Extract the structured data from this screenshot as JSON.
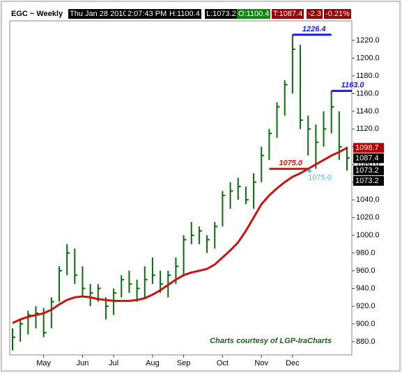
{
  "header": {
    "symbol": "EGC ~ Weekly",
    "date": "Thu Jan 28 2010",
    "time": "2:07:43 PM",
    "high": "H:1100.4",
    "low": "L:1073.2",
    "open": "O:1100.4",
    "last": "T:1087.4",
    "change": "-2.3",
    "change_pct": "-0.21%"
  },
  "chart_data": {
    "type": "ohlc",
    "categories": [
      null,
      null,
      null,
      null,
      "May",
      null,
      null,
      null,
      null,
      "Jun",
      null,
      null,
      null,
      "Jul",
      null,
      null,
      null,
      null,
      "Aug",
      null,
      null,
      null,
      "Sep",
      null,
      null,
      null,
      null,
      "Oct",
      null,
      null,
      null,
      null,
      "Nov",
      null,
      null,
      null,
      "Dec",
      null,
      null,
      null,
      null,
      null,
      null,
      null
    ],
    "high": [
      895,
      905,
      915,
      920,
      918,
      930,
      965,
      990,
      985,
      965,
      945,
      945,
      930,
      940,
      955,
      960,
      950,
      965,
      975,
      960,
      960,
      975,
      1000,
      1015,
      1010,
      1000,
      1015,
      1050,
      1060,
      1065,
      1055,
      1070,
      1100,
      1120,
      1150,
      1175,
      1226.4,
      1215,
      1135,
      1125,
      1140,
      1163,
      1140,
      1100
    ],
    "low": [
      870,
      880,
      888,
      895,
      885,
      895,
      925,
      955,
      945,
      930,
      920,
      925,
      905,
      910,
      930,
      935,
      925,
      930,
      945,
      935,
      930,
      945,
      955,
      990,
      990,
      980,
      985,
      1010,
      1030,
      1040,
      1035,
      1030,
      1060,
      1085,
      1110,
      1135,
      1160,
      1120,
      1090,
      1075,
      1100,
      1115,
      1085,
      1073.2
    ],
    "close": [
      885,
      900,
      910,
      912,
      890,
      925,
      960,
      980,
      955,
      940,
      935,
      940,
      920,
      935,
      950,
      945,
      940,
      950,
      955,
      945,
      955,
      965,
      995,
      1000,
      1005,
      995,
      1010,
      1045,
      1050,
      1055,
      1040,
      1060,
      1090,
      1115,
      1145,
      1170,
      1210,
      1130,
      1120,
      1105,
      1120,
      1145,
      1100,
      1087.4
    ],
    "ma": [
      901,
      905,
      908,
      910,
      912,
      916,
      922,
      927,
      930,
      931,
      930,
      928,
      927,
      926,
      926,
      926,
      927,
      929,
      933,
      938,
      944,
      950,
      955,
      958,
      960,
      962,
      967,
      975,
      983,
      992,
      1005,
      1020,
      1035,
      1045,
      1053,
      1060,
      1066,
      1070,
      1075,
      1080,
      1085,
      1090,
      1094,
      1098.7
    ],
    "color": "#0a6b0a",
    "ma_color": "#cc1111",
    "ylim": [
      865,
      1242
    ],
    "yticks": [
      {
        "value": 880,
        "label": "880.0"
      },
      {
        "value": 900,
        "label": "900.0"
      },
      {
        "value": 920,
        "label": "920.0"
      },
      {
        "value": 940,
        "label": "940.0"
      },
      {
        "value": 960,
        "label": "960.0"
      },
      {
        "value": 980,
        "label": "980.0"
      },
      {
        "value": 1000,
        "label": "1000.0"
      },
      {
        "value": 1020,
        "label": "1020.0"
      },
      {
        "value": 1040,
        "label": "1040.0"
      },
      {
        "value": 1060,
        "label": "1060.0"
      },
      {
        "value": 1080,
        "label": "1080.0"
      },
      {
        "value": 1100,
        "label": "1100.0"
      },
      {
        "value": 1120,
        "label": "1120.0"
      },
      {
        "value": 1140,
        "label": "1140.0"
      },
      {
        "value": 1160,
        "label": "1160.0"
      },
      {
        "value": 1180,
        "label": "1180.0"
      },
      {
        "value": 1200,
        "label": "1200.0"
      },
      {
        "value": 1220,
        "label": "1220.0"
      }
    ],
    "levels": [
      {
        "value": 1226.4,
        "label": "1226.4",
        "color": "#1a1aee",
        "from": 36,
        "to": 41
      },
      {
        "value": 1163.0,
        "label": "1163.0",
        "color": "#1a1aee",
        "from": 41,
        "to": 46
      },
      {
        "value": 1075.0,
        "label": "1075.0",
        "color": "#dd1111",
        "from": 33,
        "to": 38
      }
    ],
    "flags": [
      {
        "value": 1098.7,
        "label": "1098.7",
        "color": "#b00000"
      },
      {
        "value": 1087.4,
        "label": "1087.4",
        "color": "#000000"
      },
      {
        "value": 1073.2,
        "label": "1073.2",
        "color": "#000000"
      },
      {
        "value": 1073.2,
        "label": "1073.2",
        "color": "#000000"
      }
    ],
    "marker_label": "1075.0",
    "credit": "Charts courtesy of LGP-IraCharts"
  }
}
